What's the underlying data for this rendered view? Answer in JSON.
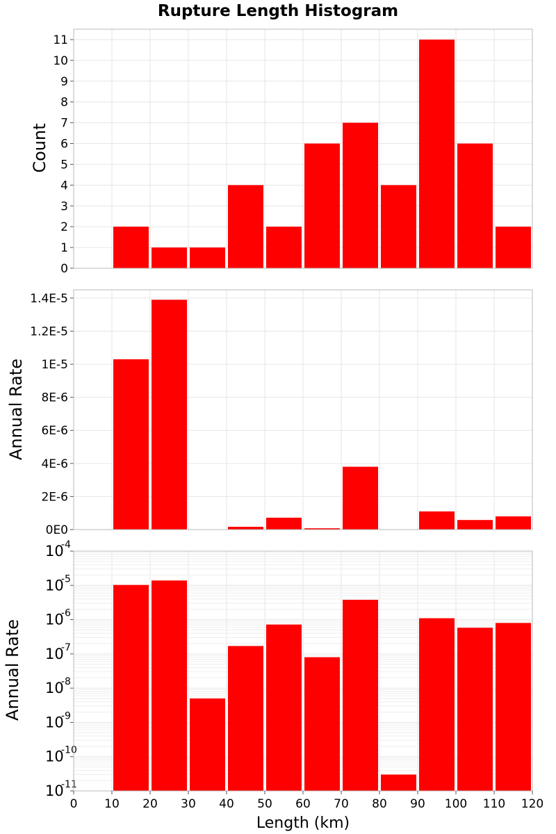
{
  "figure": {
    "title": "Rupture Length Histogram",
    "xlabel": "Length (km)"
  },
  "chart_data": [
    {
      "type": "bar",
      "title": "Rupture Length Histogram",
      "ylabel": "Count",
      "yscale": "linear",
      "ylim": [
        0,
        11.5
      ],
      "xlim": [
        0,
        120
      ],
      "bin_width": 10,
      "x": [
        15,
        25,
        35,
        45,
        55,
        65,
        75,
        85,
        95,
        105,
        115
      ],
      "values": [
        2,
        1,
        1,
        4,
        2,
        6,
        7,
        4,
        11,
        6,
        2
      ],
      "yticks": [
        0,
        1,
        2,
        3,
        4,
        5,
        6,
        7,
        8,
        9,
        10,
        11
      ],
      "ytick_labels": [
        "0",
        "1",
        "2",
        "3",
        "4",
        "5",
        "6",
        "7",
        "8",
        "9",
        "10",
        "11"
      ],
      "color": "#ff0000",
      "grid": true
    },
    {
      "type": "bar",
      "ylabel": "Annual Rate",
      "yscale": "linear",
      "ylim": [
        0,
        1.45e-05
      ],
      "xlim": [
        0,
        120
      ],
      "bin_width": 10,
      "x": [
        15,
        25,
        35,
        45,
        55,
        65,
        75,
        85,
        95,
        105,
        115
      ],
      "values": [
        1.03e-05,
        1.39e-05,
        5e-09,
        1.7e-07,
        7.2e-07,
        8e-08,
        3.8e-06,
        3e-11,
        1.1e-06,
        5.8e-07,
        8e-07
      ],
      "yticks": [
        0,
        2e-06,
        4e-06,
        6e-06,
        8e-06,
        1e-05,
        1.2e-05,
        1.4e-05
      ],
      "ytick_labels": [
        "0E0",
        "2E-6",
        "4E-6",
        "6E-6",
        "8E-6",
        "1E-5",
        "1.2E-5",
        "1.4E-5"
      ],
      "color": "#ff0000",
      "grid": true
    },
    {
      "type": "bar",
      "ylabel": "Annual Rate",
      "yscale": "log",
      "ylim": [
        1e-11,
        0.0001
      ],
      "xlim": [
        0,
        120
      ],
      "bin_width": 10,
      "x": [
        15,
        25,
        35,
        45,
        55,
        65,
        75,
        85,
        95,
        105,
        115
      ],
      "values": [
        1.03e-05,
        1.39e-05,
        5e-09,
        1.7e-07,
        7.2e-07,
        8e-08,
        3.8e-06,
        3e-11,
        1.1e-06,
        5.8e-07,
        8e-07
      ],
      "ytick_exponents": [
        "-11",
        "-10",
        "-9",
        "-8",
        "-7",
        "-6",
        "-5",
        "-4"
      ],
      "ytick_base": "10",
      "xticks": [
        0,
        10,
        20,
        30,
        40,
        50,
        60,
        70,
        80,
        90,
        100,
        110,
        120
      ],
      "xtick_labels": [
        "0",
        "10",
        "20",
        "30",
        "40",
        "50",
        "60",
        "70",
        "80",
        "90",
        "100",
        "110",
        "120"
      ],
      "color": "#ff0000",
      "grid": true
    }
  ]
}
